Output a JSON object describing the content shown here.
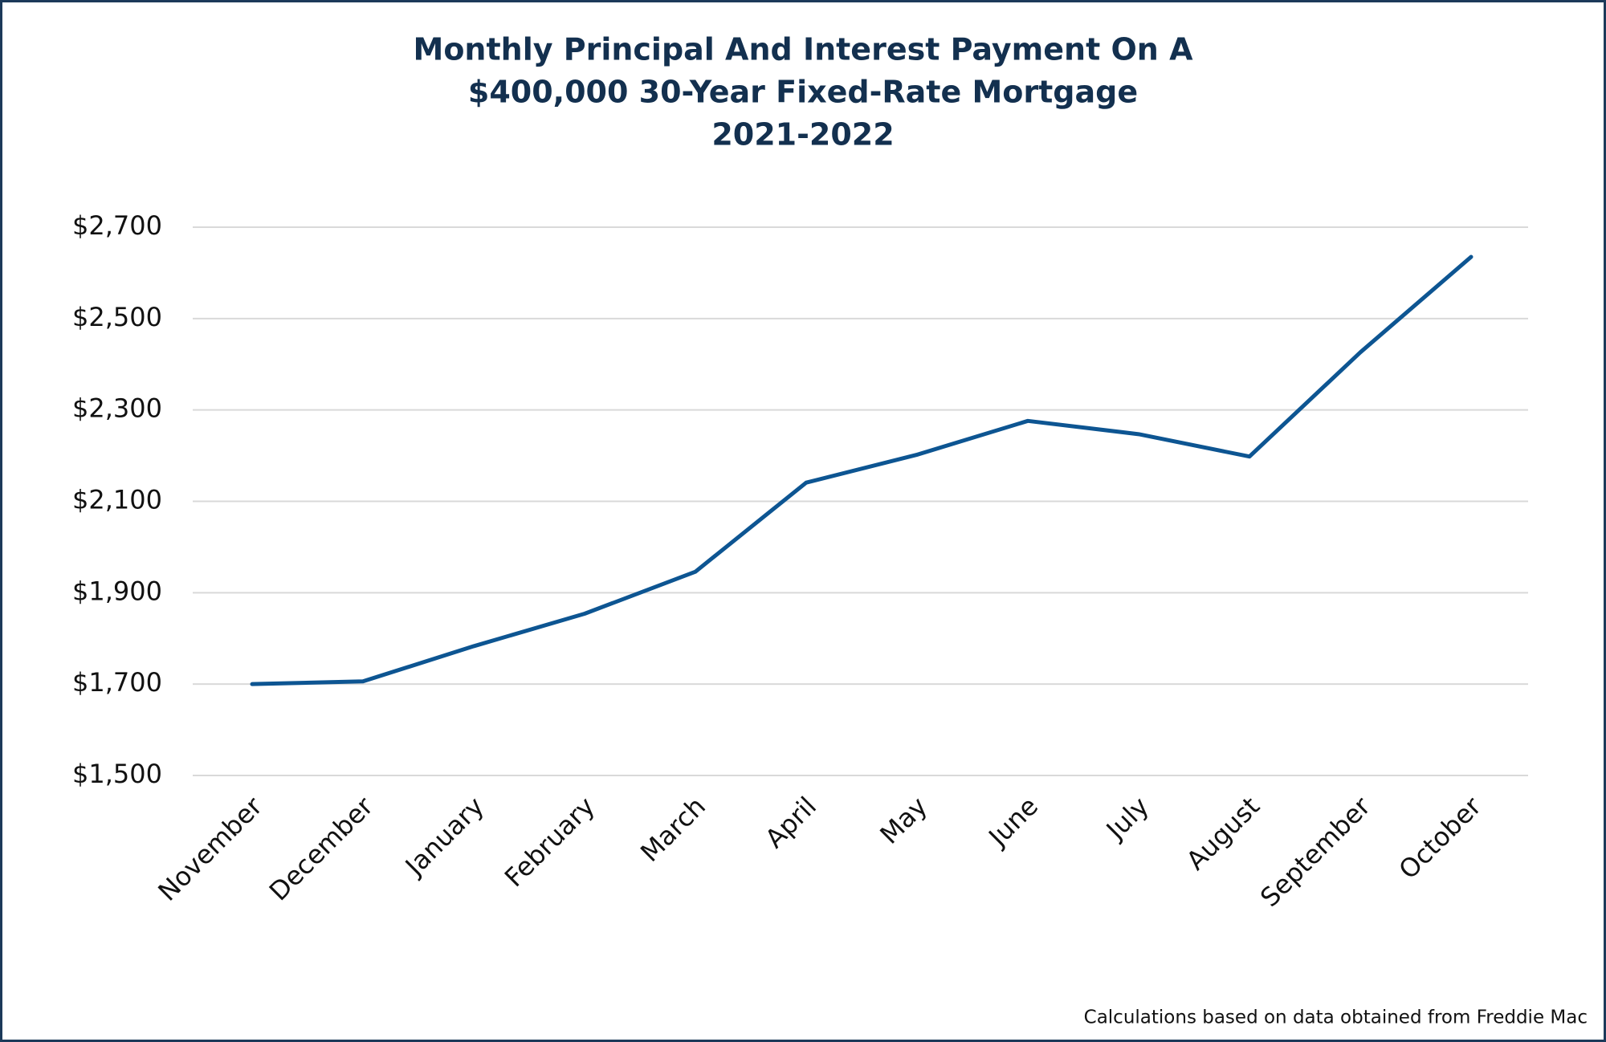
{
  "chart_data": {
    "type": "line",
    "title": [
      "Monthly Principal And Interest Payment On A",
      "$400,000 30-Year Fixed-Rate Mortgage",
      "2021-2022"
    ],
    "categories": [
      "November",
      "December",
      "January",
      "February",
      "March",
      "April",
      "May",
      "June",
      "July",
      "August",
      "September",
      "October"
    ],
    "series": [
      {
        "color": "#0d5592",
        "values": [
          1700,
          1706,
          1783,
          1854,
          1946,
          2141,
          2202,
          2276,
          2247,
          2198,
          2426,
          2635
        ]
      }
    ],
    "ylim": [
      1500,
      2700
    ],
    "yticks": [
      {
        "value": 1500,
        "label": "$1,500"
      },
      {
        "value": 1700,
        "label": "$1,700"
      },
      {
        "value": 1900,
        "label": "$1,900"
      },
      {
        "value": 2100,
        "label": "$2,100"
      },
      {
        "value": 2300,
        "label": "$2,300"
      },
      {
        "value": 2500,
        "label": "$2,500"
      },
      {
        "value": 2700,
        "label": "$2,700"
      }
    ],
    "grid": true,
    "note": "Calculations based on data obtained from Freddie Mac"
  }
}
